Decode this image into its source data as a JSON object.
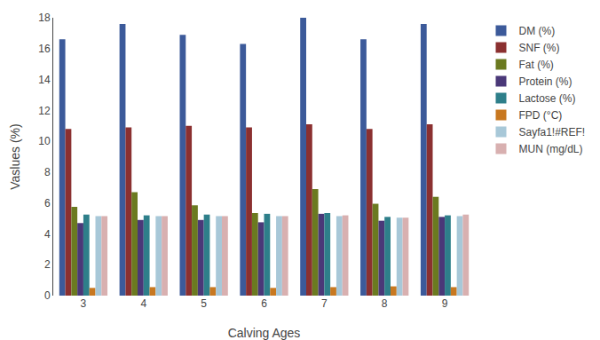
{
  "chart_data": {
    "type": "bar",
    "xlabel": "Calving Ages",
    "ylabel": "Vaslues (%)",
    "categories": [
      "3",
      "4",
      "5",
      "6",
      "7",
      "8",
      "9"
    ],
    "series": [
      {
        "name": "DM (%)",
        "color": "#3c5a9a",
        "values": [
          16.6,
          17.6,
          16.9,
          16.3,
          18.0,
          16.6,
          17.6
        ]
      },
      {
        "name": "SNF (%)",
        "color": "#8b3030",
        "values": [
          10.8,
          10.9,
          11.0,
          10.9,
          11.1,
          10.8,
          11.1
        ]
      },
      {
        "name": "Fat (%)",
        "color": "#6b7a20",
        "values": [
          5.75,
          6.7,
          5.85,
          5.35,
          6.9,
          5.95,
          6.4
        ]
      },
      {
        "name": "Protein (%)",
        "color": "#4a3878",
        "values": [
          4.7,
          4.9,
          4.9,
          4.75,
          5.3,
          4.85,
          5.1
        ]
      },
      {
        "name": "Lactose (%)",
        "color": "#2e7f8a",
        "values": [
          5.25,
          5.2,
          5.25,
          5.3,
          5.35,
          5.1,
          5.2
        ]
      },
      {
        "name": "FPD (°C)",
        "color": "#c87820",
        "values": [
          0.5,
          0.55,
          0.55,
          0.5,
          0.55,
          0.6,
          0.55
        ]
      },
      {
        "name": "Sayfa1!#REF!",
        "color": "#a8c8d8",
        "values": [
          5.15,
          5.15,
          5.15,
          5.15,
          5.15,
          5.05,
          5.15
        ]
      },
      {
        "name": "MUN (mg/dL)",
        "color": "#d8b0b0",
        "values": [
          5.15,
          5.15,
          5.15,
          5.15,
          5.2,
          5.05,
          5.25
        ]
      }
    ],
    "ylim": [
      0,
      18
    ],
    "yticks": [
      0,
      2,
      4,
      6,
      8,
      10,
      12,
      14,
      16,
      18
    ],
    "grid": false,
    "legend": "right"
  }
}
